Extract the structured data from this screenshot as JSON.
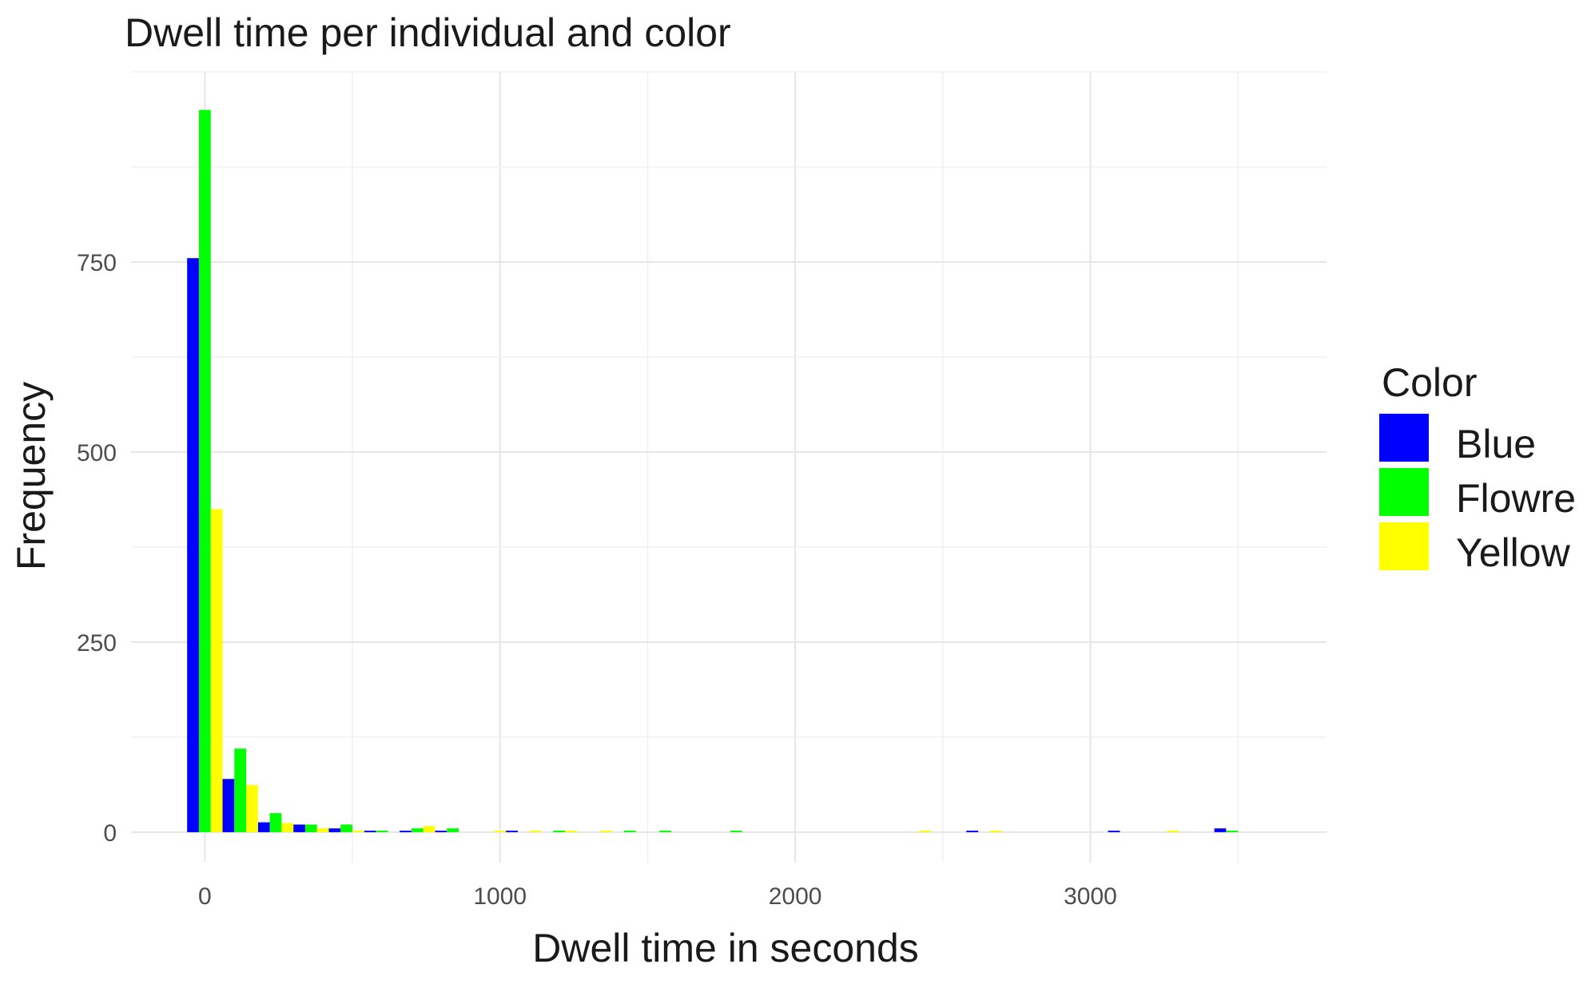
{
  "chart_data": {
    "type": "bar",
    "title": "Dwell time per individual and color",
    "xlabel": "Dwell time in seconds",
    "ylabel": "Frequency",
    "xlim": [
      -250,
      3800
    ],
    "ylim": [
      -40,
      1000
    ],
    "x_ticks": [
      0,
      1000,
      2000,
      3000
    ],
    "x_tick_labels": [
      "0",
      "1000",
      "2000",
      "3000"
    ],
    "y_ticks": [
      0,
      250,
      500,
      750
    ],
    "y_tick_labels": [
      "0",
      "250",
      "500",
      "750"
    ],
    "grid": true,
    "bin_width": 120,
    "legend": {
      "title": "Color",
      "position": "right",
      "entries": [
        "Blue",
        "Flowre",
        "Yellow"
      ]
    },
    "series": [
      {
        "name": "Blue",
        "color": "#0000ff",
        "bins": [
          0,
          120,
          240,
          360,
          480,
          600,
          720,
          840,
          1080,
          2640,
          3120,
          3480
        ],
        "values": [
          755,
          70,
          13,
          10,
          5,
          2,
          2,
          2,
          2,
          2,
          2,
          5
        ]
      },
      {
        "name": "Flowre",
        "color": "#00ff00",
        "bins": [
          0,
          120,
          240,
          360,
          480,
          600,
          720,
          840,
          1200,
          1440,
          1560,
          1800,
          3480
        ],
        "values": [
          950,
          110,
          25,
          10,
          10,
          2,
          5,
          5,
          2,
          2,
          2,
          2,
          2
        ]
      },
      {
        "name": "Yellow",
        "color": "#ffff00",
        "bins": [
          0,
          120,
          240,
          360,
          480,
          720,
          960,
          1080,
          1200,
          1320,
          2400,
          2640,
          3240
        ],
        "values": [
          425,
          62,
          12,
          5,
          2,
          8,
          2,
          2,
          2,
          2,
          2,
          2,
          2
        ]
      }
    ]
  }
}
